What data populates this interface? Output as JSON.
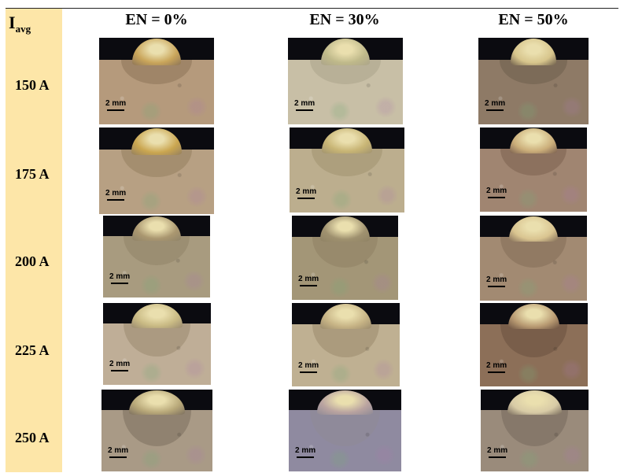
{
  "corner": {
    "main": "I",
    "sub": "avg"
  },
  "columns": [
    "EN = 0%",
    "EN = 30%",
    "EN = 50%"
  ],
  "rows": [
    "150 A",
    "175 A",
    "200 A",
    "225 A",
    "250 A"
  ],
  "scale_label": "2 mm",
  "colors": {
    "header_fill": "#fde6a8",
    "background_dark": "#0b0b10"
  },
  "cells": [
    [
      {
        "plate": "#b59a7c",
        "bead": "#c9a55a",
        "haz": "#8d7558"
      },
      {
        "plate": "#b7a083",
        "bead": "#caa650",
        "haz": "#95805f"
      },
      {
        "plate": "#a89b7f",
        "bead": "#aa9770",
        "haz": "#8f8368"
      },
      {
        "plate": "#bfae97",
        "bead": "#c9ba84",
        "haz": "#9a8a70"
      },
      {
        "plate": "#a99a86",
        "bead": "#b8a879",
        "haz": "#7c6f5e"
      }
    ],
    [
      {
        "plate": "#c8bfa6",
        "bead": "#bfb98a",
        "haz": "#aca48a"
      },
      {
        "plate": "#bcae8e",
        "bead": "#c8b575",
        "haz": "#a1936f"
      },
      {
        "plate": "#a39677",
        "bead": "#9f916f",
        "haz": "#8f8264"
      },
      {
        "plate": "#bfb092",
        "bead": "#c6b385",
        "haz": "#9a8a6c"
      },
      {
        "plate": "#8f8aa0",
        "bead": "#b9a3a0",
        "haz": "#8f8a96"
      }
    ],
    [
      {
        "plate": "#8e7a66",
        "bead": "#d7c58c",
        "haz": "#6e5e4c"
      },
      {
        "plate": "#a08571",
        "bead": "#cbae7a",
        "haz": "#7b604f"
      },
      {
        "plate": "#a28a72",
        "bead": "#d9c490",
        "haz": "#836d58"
      },
      {
        "plate": "#8c6f58",
        "bead": "#b89a72",
        "haz": "#6a5040"
      },
      {
        "plate": "#9a8b7b",
        "bead": "#d8cba6",
        "haz": "#776a5c"
      }
    ]
  ]
}
